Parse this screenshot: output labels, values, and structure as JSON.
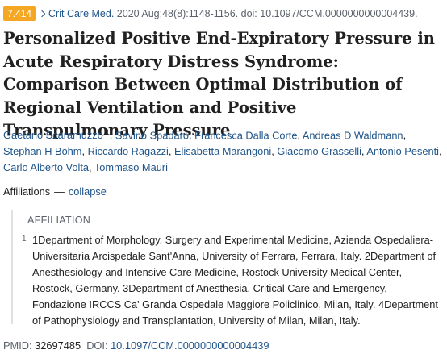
{
  "header": {
    "impact": "7.414",
    "journal": "Crit Care Med.",
    "citation": "2020 Aug;48(8):1148-1156. doi: 10.1097/CCM.0000000000004439."
  },
  "title": "Personalized Positive End-Expiratory Pressure in Acute Respiratory Distress Syndrome: Comparison Between Optimal Distribution of Regional Ventilation and Positive Transpulmonary Pressure",
  "authors": [
    {
      "name": "Gaetano Scaramuzzo",
      "sup": "1"
    },
    {
      "name": "Savino Spadaro"
    },
    {
      "name": "Francesca Dalla Corte"
    },
    {
      "name": "Andreas D Waldmann"
    },
    {
      "name": "Stephan H Böhm"
    },
    {
      "name": "Riccardo Ragazzi"
    },
    {
      "name": "Elisabetta Marangoni"
    },
    {
      "name": "Giacomo Grasselli"
    },
    {
      "name": "Antonio Pesenti"
    },
    {
      "name": "Carlo Alberto Volta"
    },
    {
      "name": "Tommaso Mauri"
    }
  ],
  "affiliations": {
    "label": "Affiliations",
    "dash": "—",
    "toggle": "collapse",
    "heading": "AFFILIATION",
    "items": [
      {
        "number": "1",
        "text": "1Department of Morphology, Surgery and Experimental Medicine, Azienda Ospedaliera-Universitaria Arcispedale Sant'Anna, University of Ferrara, Ferrara, Italy. 2Department of Anesthesiology and Intensive Care Medicine, Rostock University Medical Center, Rostock, Germany. 3Department of Anesthesia, Critical Care and Emergency, Fondazione IRCCS Ca' Granda Ospedale Maggiore Policlinico, Milan, Italy. 4Department of Pathophysiology and Transplantation, University of Milan, Milan, Italy."
      }
    ]
  },
  "identifiers": {
    "pmid_label": "PMID:",
    "pmid": "32697485",
    "doi_label": "DOI:",
    "doi": "10.1097/CCM.0000000000004439"
  }
}
